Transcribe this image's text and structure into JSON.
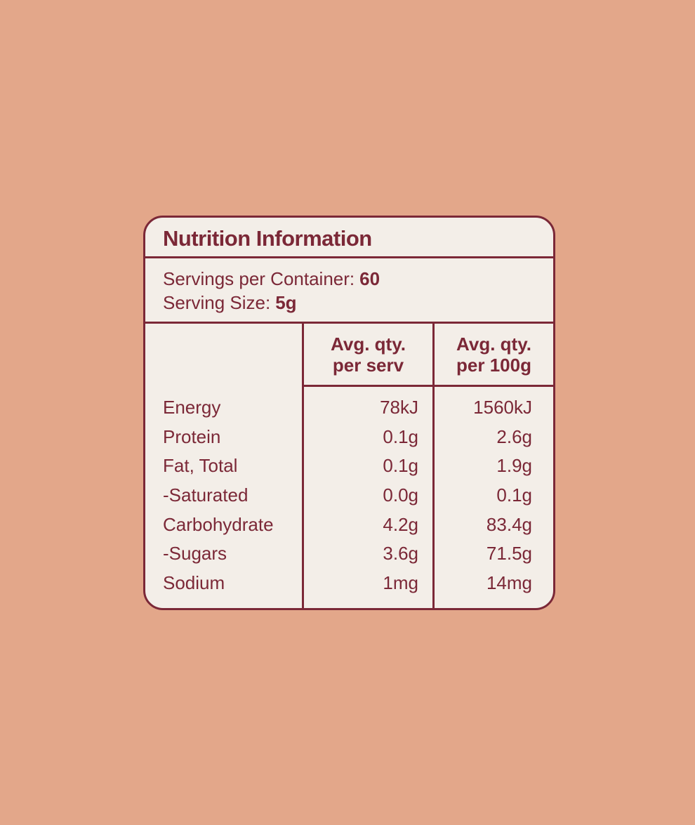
{
  "colors": {
    "background": "#e3a78a",
    "card_background": "#f3eee8",
    "accent_maroon": "#7b2837"
  },
  "panel": {
    "title": "Nutrition Information",
    "servings_per_container_label": "Servings per Container:",
    "servings_per_container_value": "60",
    "serving_size_label": "Serving Size:",
    "serving_size_value": "5g",
    "table": {
      "headers": {
        "per_serv_line1": "Avg. qty.",
        "per_serv_line2": "per serv",
        "per_100g_line1": "Avg. qty.",
        "per_100g_line2": "per 100g"
      },
      "rows": [
        {
          "label": "Energy",
          "per_serv": "78kJ",
          "per_100g": "1560kJ"
        },
        {
          "label": "Protein",
          "per_serv": "0.1g",
          "per_100g": "2.6g"
        },
        {
          "label": "Fat, Total",
          "per_serv": "0.1g",
          "per_100g": "1.9g"
        },
        {
          "label": "-Saturated",
          "per_serv": "0.0g",
          "per_100g": "0.1g"
        },
        {
          "label": "Carbohydrate",
          "per_serv": "4.2g",
          "per_100g": "83.4g"
        },
        {
          "label": "-Sugars",
          "per_serv": "3.6g",
          "per_100g": "71.5g"
        },
        {
          "label": "Sodium",
          "per_serv": "1mg",
          "per_100g": "14mg"
        }
      ]
    }
  }
}
